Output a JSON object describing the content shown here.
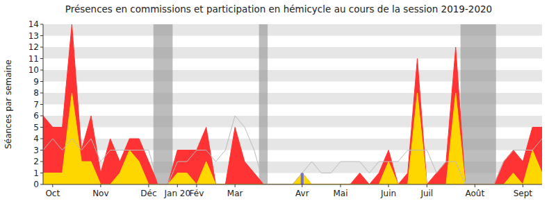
{
  "chart_data": {
    "type": "area",
    "title": "Présences en commissions et participation en hémicycle au cours de la session 2019-2020",
    "y_label": "Séances par semaine",
    "categories": [
      null,
      "Oct",
      null,
      null,
      null,
      null,
      "Nov",
      null,
      null,
      null,
      null,
      "Déc",
      null,
      null,
      "Jan 20",
      null,
      "Fév",
      null,
      null,
      null,
      "Mar",
      null,
      null,
      null,
      null,
      null,
      null,
      "Avr",
      null,
      null,
      null,
      "Mai",
      null,
      null,
      null,
      null,
      "Juin",
      null,
      null,
      null,
      "Juil",
      null,
      null,
      null,
      null,
      "Août",
      null,
      null,
      null,
      null,
      "Sept",
      null,
      null
    ],
    "series": [
      {
        "type": "area",
        "color": "#ff3333",
        "values": [
          6,
          5,
          5,
          14,
          3,
          6,
          1,
          4,
          2,
          4,
          4,
          2,
          0,
          0,
          3,
          3,
          3,
          5,
          0,
          0,
          5,
          2,
          1,
          0,
          0,
          0,
          0,
          1,
          0,
          0,
          0,
          0,
          0,
          1,
          0,
          1,
          3,
          0,
          1,
          11,
          0,
          1,
          2,
          12,
          0,
          0,
          0,
          0,
          2,
          3,
          2,
          5,
          5
        ]
      },
      {
        "type": "area",
        "color": "#ffd700",
        "values": [
          1,
          1,
          1,
          8,
          2,
          2,
          0,
          0,
          1,
          3,
          2,
          0,
          0,
          0,
          1,
          1,
          0,
          2,
          0,
          0,
          0,
          0,
          0,
          0,
          0,
          0,
          0,
          1,
          0,
          0,
          0,
          0,
          0,
          0,
          0,
          0,
          2,
          0,
          0,
          8,
          0,
          0,
          0,
          8,
          0,
          0,
          0,
          0,
          0,
          1,
          0,
          3,
          1
        ]
      },
      {
        "type": "line",
        "color": "#bbbbbb",
        "values": [
          3,
          4,
          3,
          4,
          3,
          4,
          2,
          3,
          3,
          3,
          3,
          3,
          0,
          0,
          2,
          2,
          3,
          3,
          2,
          3,
          6,
          5,
          3,
          0,
          0,
          0,
          0,
          1,
          2,
          1,
          1,
          2,
          2,
          2,
          1,
          2,
          2,
          2,
          3,
          3,
          3,
          1,
          2,
          2,
          0,
          0,
          0,
          0,
          2,
          3,
          3,
          3,
          4
        ]
      },
      {
        "type": "bar",
        "color": "#7070d0",
        "values": [
          null,
          null,
          null,
          null,
          null,
          null,
          null,
          null,
          null,
          null,
          null,
          null,
          null,
          null,
          null,
          null,
          null,
          null,
          null,
          null,
          null,
          null,
          null,
          null,
          null,
          null,
          null,
          1,
          null,
          null,
          null,
          null,
          null,
          null,
          null,
          null,
          null,
          null,
          null,
          null,
          null,
          null,
          null,
          null,
          null,
          null,
          null,
          null,
          null,
          null,
          null,
          null,
          null
        ]
      }
    ],
    "shaded_ranges": [
      {
        "from": 11.5,
        "to": 13.5
      },
      {
        "from": 22.5,
        "to": 23.4
      },
      {
        "from": 43.5,
        "to": 47.2
      }
    ],
    "ylim": [
      0,
      14
    ],
    "yticks": [
      0,
      1,
      2,
      3,
      4,
      5,
      6,
      7,
      8,
      9,
      10,
      11,
      12,
      13,
      14
    ],
    "grid": true
  }
}
